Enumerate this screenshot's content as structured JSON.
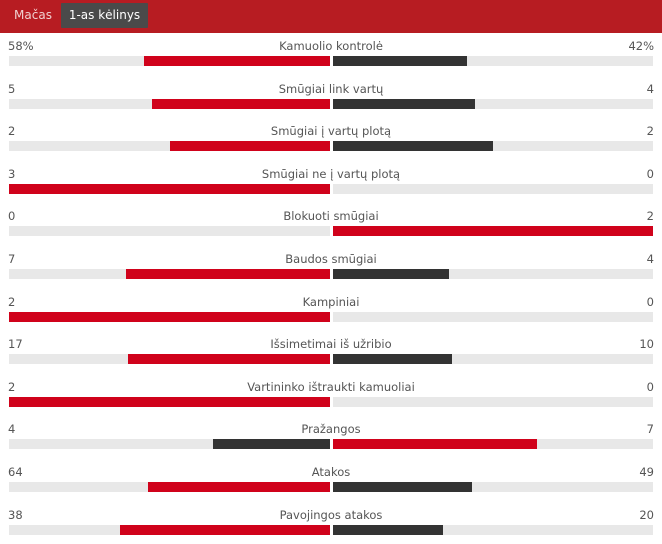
{
  "tabs": [
    {
      "label": "Mačas",
      "active": false
    },
    {
      "label": "1-as kėlinys",
      "active": true
    }
  ],
  "colors": {
    "header_bg": "#b71c22",
    "active_tab_bg": "#4a4a4a",
    "leader": "#d0021b",
    "trailer": "#333333",
    "track": "#e8e8e8"
  },
  "stats": [
    {
      "label": "Kamuolio kontrolė",
      "left": "58%",
      "right": "42%",
      "left_num": 58,
      "right_num": 42
    },
    {
      "label": "Smūgiai link vartų",
      "left": "5",
      "right": "4",
      "left_num": 5,
      "right_num": 4
    },
    {
      "label": "Smūgiai į vartų plotą",
      "left": "2",
      "right": "2",
      "left_num": 2,
      "right_num": 2
    },
    {
      "label": "Smūgiai ne į vartų plotą",
      "left": "3",
      "right": "0",
      "left_num": 3,
      "right_num": 0
    },
    {
      "label": "Blokuoti smūgiai",
      "left": "0",
      "right": "2",
      "left_num": 0,
      "right_num": 2
    },
    {
      "label": "Baudos smūgiai",
      "left": "7",
      "right": "4",
      "left_num": 7,
      "right_num": 4
    },
    {
      "label": "Kampiniai",
      "left": "2",
      "right": "0",
      "left_num": 2,
      "right_num": 0
    },
    {
      "label": "Išsimetimai iš užribio",
      "left": "17",
      "right": "10",
      "left_num": 17,
      "right_num": 10
    },
    {
      "label": "Vartininko ištraukti kamuoliai",
      "left": "2",
      "right": "0",
      "left_num": 2,
      "right_num": 0
    },
    {
      "label": "Pražangos",
      "left": "4",
      "right": "7",
      "left_num": 4,
      "right_num": 7
    },
    {
      "label": "Atakos",
      "left": "64",
      "right": "49",
      "left_num": 64,
      "right_num": 49
    },
    {
      "label": "Pavojingos atakos",
      "left": "38",
      "right": "20",
      "left_num": 38,
      "right_num": 20
    }
  ]
}
